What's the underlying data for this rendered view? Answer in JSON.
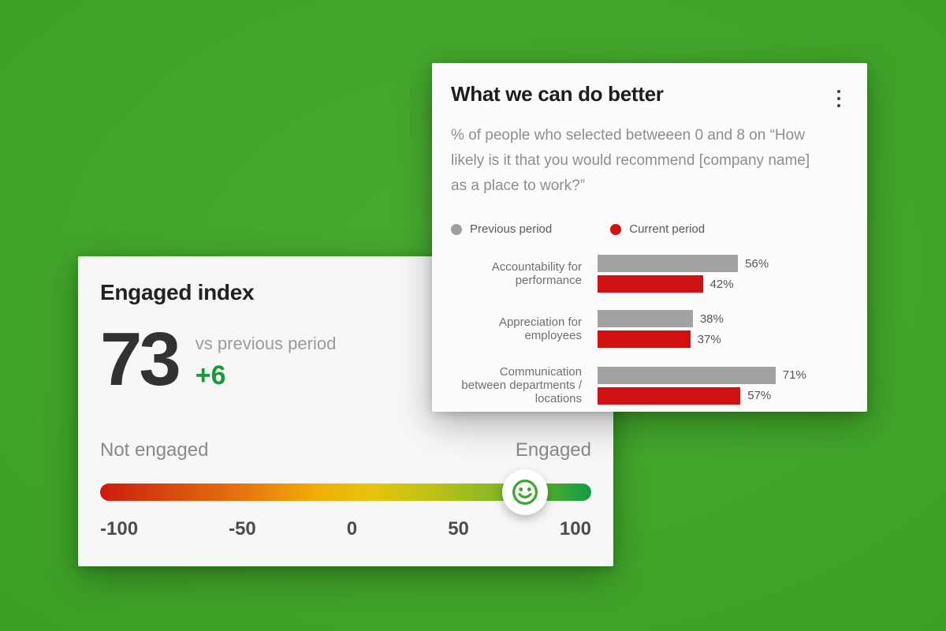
{
  "background": {
    "color": "#3da127"
  },
  "engaged_card": {
    "title": "Engaged index",
    "value": "73",
    "vs_label": "vs previous period",
    "delta": "+6",
    "delta_color": "#189838",
    "scale": {
      "left_label": "Not engaged",
      "right_label": "Engaged",
      "min": -100,
      "max": 100,
      "ticks": [
        "-100",
        "-50",
        "0",
        "50",
        "100"
      ],
      "marker_value": 73,
      "marker_icon": "smiley-face-icon",
      "smiley_color": "#3aa72e",
      "gradient": [
        "#cd1b0c",
        "#e8770b",
        "#f0ae06",
        "#bcc216",
        "#0f9d44"
      ]
    }
  },
  "better_card": {
    "title": "What we can do better",
    "menu_icon": "kebab-menu-icon",
    "subtitle": "% of people who selected betweeen 0 and 8 on “How likely is it that you would recommend [company name] as a place to work?”",
    "legend": [
      {
        "label": "Previous period",
        "color": "#9e9e9e"
      },
      {
        "label": "Current period",
        "color": "#d21010"
      }
    ]
  },
  "chart_data": [
    {
      "type": "bar",
      "orientation": "horizontal",
      "title": "What we can do better",
      "subtitle": "% of people who selected betweeen 0 and 8 on “How likely is it that you would recommend [company name] as a place to work?”",
      "categories": [
        "Accountability for performance",
        "Appreciation for employees",
        "Communication between departments / locations"
      ],
      "category_label_lines": [
        [
          "Accountability for",
          "performance"
        ],
        [
          "Appreciation for",
          "employees"
        ],
        [
          "Communication",
          "between departments /",
          "locations"
        ]
      ],
      "series": [
        {
          "name": "Previous period",
          "color": "#a2a2a2",
          "values": [
            56,
            38,
            71
          ]
        },
        {
          "name": "Current period",
          "color": "#cf1111",
          "values": [
            42,
            37,
            57
          ]
        }
      ],
      "value_suffix": "%",
      "xlim": [
        0,
        100
      ],
      "legend_position": "top",
      "grid": false
    },
    {
      "type": "gauge",
      "title": "Engaged index",
      "value": 73,
      "delta": "+6",
      "range": [
        -100,
        100
      ],
      "ticks": [
        -100,
        -50,
        0,
        50,
        100
      ],
      "end_labels": [
        "Not engaged",
        "Engaged"
      ]
    }
  ]
}
